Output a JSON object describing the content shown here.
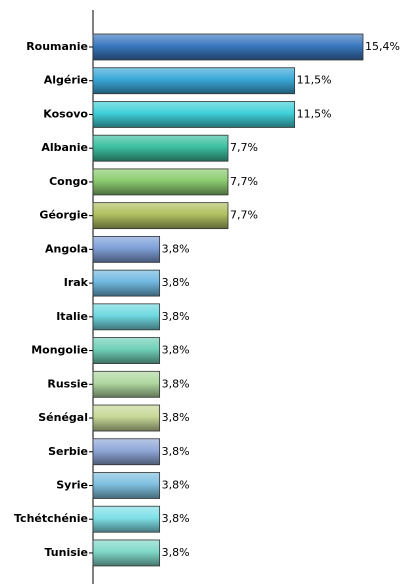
{
  "chart_data": {
    "type": "bar",
    "orientation": "horizontal",
    "categories": [
      "Roumanie",
      "Algérie",
      "Kosovo",
      "Albanie",
      "Congo",
      "Géorgie",
      "Angola",
      "Irak",
      "Italie",
      "Mongolie",
      "Russie",
      "Sénégal",
      "Serbie",
      "Syrie",
      "Tchétchénie",
      "Tunisie"
    ],
    "values": [
      15.4,
      11.5,
      11.5,
      7.7,
      7.7,
      7.7,
      3.8,
      3.8,
      3.8,
      3.8,
      3.8,
      3.8,
      3.8,
      3.8,
      3.8,
      3.8
    ],
    "value_labels": [
      "15,4%",
      "11,5%",
      "11,5%",
      "7,7%",
      "7,7%",
      "7,7%",
      "3,8%",
      "3,8%",
      "3,8%",
      "3,8%",
      "3,8%",
      "3,8%",
      "3,8%",
      "3,8%",
      "3,8%",
      "3,8%"
    ],
    "colors": [
      "#3a78c0",
      "#3aa8d8",
      "#40d0d8",
      "#3cc0a0",
      "#8ccc70",
      "#b0c060",
      "#7fa0d8",
      "#70b8e0",
      "#70d8e0",
      "#70d0b8",
      "#b0d8a0",
      "#c8d898",
      "#90a8d8",
      "#80c0e0",
      "#80e0e8",
      "#80d8c8"
    ]
  }
}
